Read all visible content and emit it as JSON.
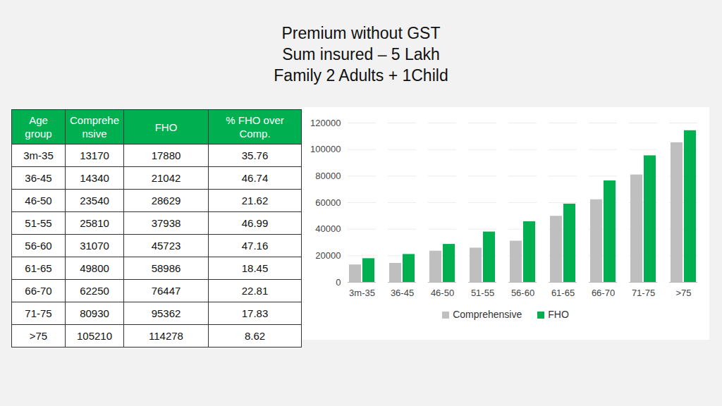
{
  "title": [
    "Premium without GST",
    "Sum insured – 5 Lakh",
    "Family 2 Adults + 1Child"
  ],
  "table": {
    "columns": [
      "Age group",
      "Comprehensive",
      "FHO",
      "% FHO over Comp."
    ],
    "rows": [
      [
        "3m-35",
        13170,
        17880,
        35.76
      ],
      [
        "36-45",
        14340,
        21042,
        46.74
      ],
      [
        "46-50",
        23540,
        28629,
        21.62
      ],
      [
        "51-55",
        25810,
        37938,
        46.99
      ],
      [
        "56-60",
        31070,
        45723,
        47.16
      ],
      [
        "61-65",
        49800,
        58986,
        18.45
      ],
      [
        "66-70",
        62250,
        76447,
        22.81
      ],
      [
        "71-75",
        80930,
        95362,
        17.83
      ],
      [
        ">75",
        105210,
        114278,
        8.62
      ]
    ]
  },
  "chart_data": {
    "type": "bar",
    "categories": [
      "3m-35",
      "36-45",
      "46-50",
      "51-55",
      "56-60",
      "61-65",
      "66-70",
      "71-75",
      ">75"
    ],
    "series": [
      {
        "name": "Comprehensive",
        "color": "#bfbfbf",
        "values": [
          13170,
          14340,
          23540,
          25810,
          31070,
          49800,
          62250,
          80930,
          105210
        ]
      },
      {
        "name": "FHO",
        "color": "#00b050",
        "values": [
          17880,
          21042,
          28629,
          37938,
          45723,
          58986,
          76447,
          95362,
          114278
        ]
      }
    ],
    "ylim": [
      0,
      120000
    ],
    "yticks": [
      0,
      20000,
      40000,
      60000,
      80000,
      100000,
      120000
    ],
    "grid": true,
    "legend": "bottom"
  }
}
